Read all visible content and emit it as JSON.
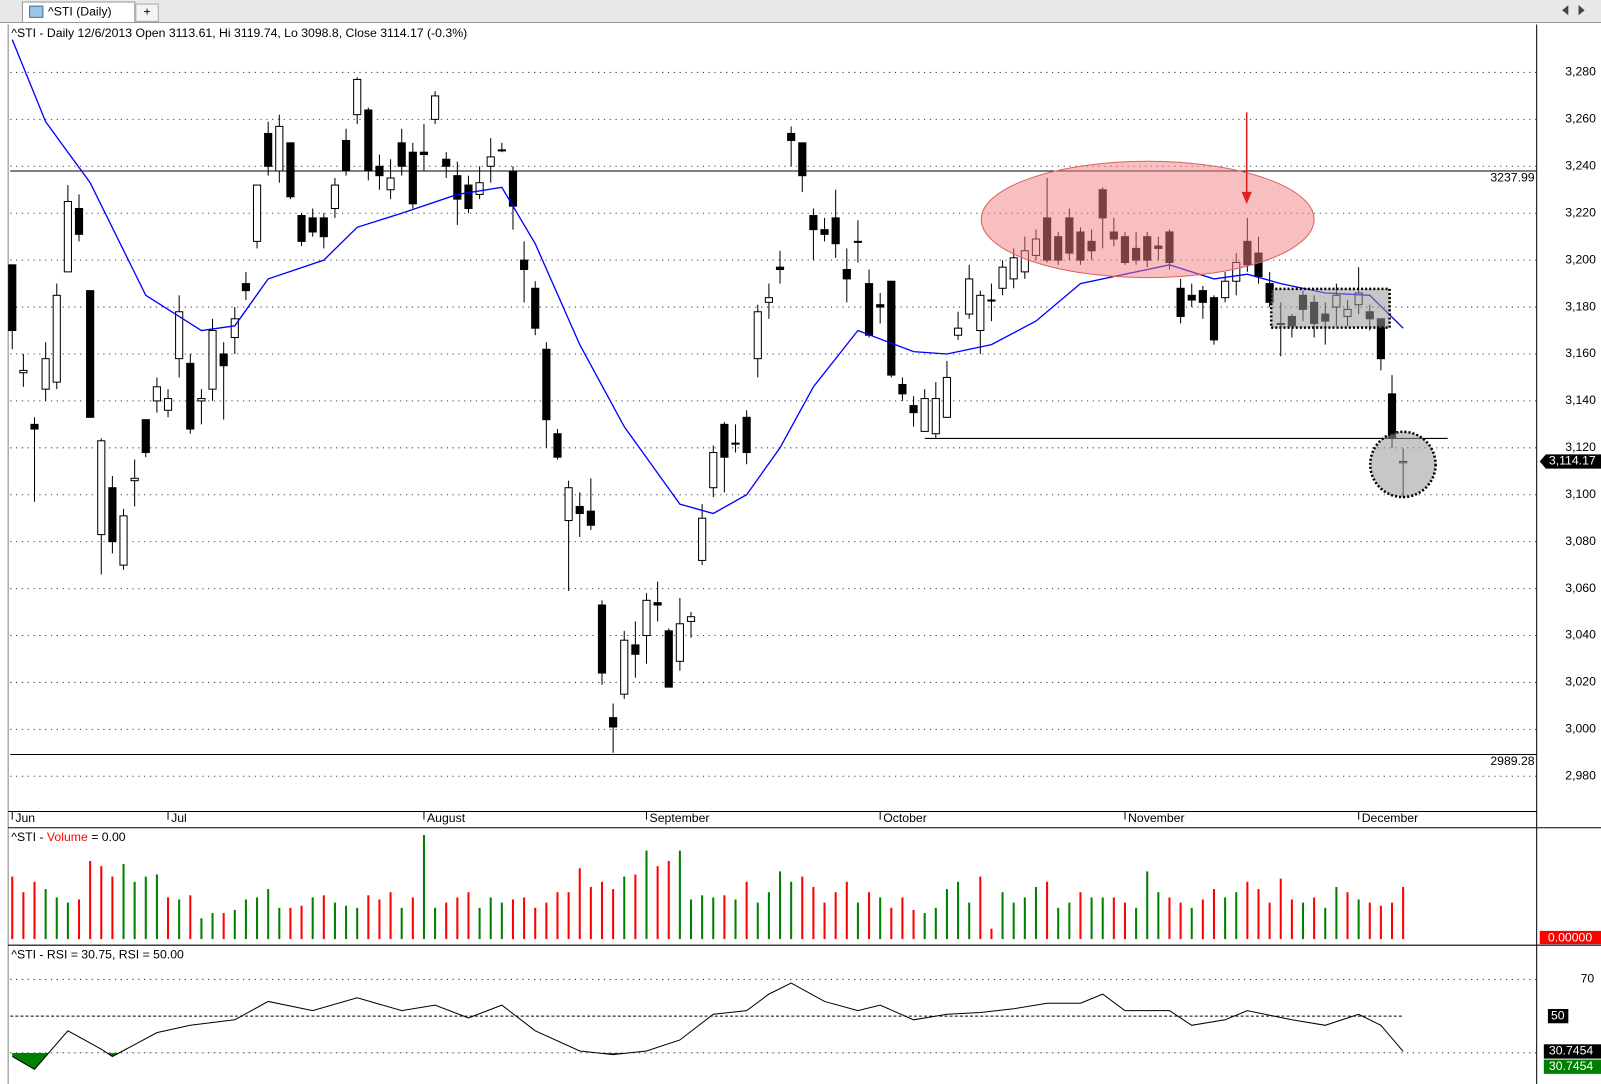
{
  "window": {
    "tab": "^STI (Daily)"
  },
  "chart_data": [
    {
      "type": "candlestick",
      "title": "^STI - Daily 12/6/2013 Open 3113.61, Hi 3119.74, Lo 3098.8, Close 3114.17 (-0.3%)",
      "open": [
        3198,
        3152,
        3130,
        3145,
        3148,
        3195,
        3222,
        3187,
        3083,
        3103,
        3070,
        3106,
        3132,
        3140,
        3136,
        3158,
        3156,
        3140,
        3145,
        3160,
        3167,
        3190,
        3208,
        3254,
        3238,
        3250,
        3219,
        3218,
        3218,
        3222,
        3251,
        3262,
        3264,
        3240,
        3230,
        3250,
        3246,
        3246,
        3260,
        3243,
        3236,
        3232,
        3228,
        3240,
        3247,
        3238,
        3200,
        3188,
        3162,
        3126,
        3089,
        3095,
        3093,
        3053,
        3005,
        3015,
        3036,
        3040,
        3054,
        3042,
        3029,
        3046,
        3072,
        3103,
        3130,
        3122,
        3133,
        3158,
        3182,
        3197,
        3254,
        3250,
        3219,
        3213,
        3218,
        3196,
        3208,
        3190,
        3181,
        3191,
        3147,
        3138,
        3127,
        3126,
        3133,
        3168,
        3177,
        3170,
        3183,
        3188,
        3192,
        3195,
        3202,
        3218,
        3210,
        3218,
        3212,
        3208,
        3230,
        3212,
        3210,
        3205,
        3210,
        3206,
        3212,
        3188,
        3185,
        3187,
        3184,
        3184,
        3191,
        3208,
        3203,
        3190,
        3173,
        3176,
        3185,
        3182,
        3177,
        3180,
        3176,
        3181,
        3178,
        3175,
        3143,
        3113.61
      ],
      "high": [
        3198,
        3160,
        3133,
        3165,
        3190,
        3232,
        3228,
        3187,
        3124,
        3108,
        3094,
        3115,
        3132,
        3150,
        3145,
        3185,
        3160,
        3145,
        3175,
        3165,
        3180,
        3195,
        3232,
        3259,
        3262,
        3250,
        3220,
        3222,
        3220,
        3235,
        3256,
        3278,
        3265,
        3245,
        3243,
        3256,
        3250,
        3258,
        3272,
        3246,
        3242,
        3236,
        3240,
        3252,
        3250,
        3240,
        3208,
        3191,
        3165,
        3128,
        3106,
        3101,
        3107,
        3055,
        3011,
        3042,
        3046,
        3058,
        3063,
        3043,
        3056,
        3050,
        3096,
        3121,
        3131,
        3130,
        3136,
        3181,
        3190,
        3204,
        3257,
        3250,
        3222,
        3218,
        3230,
        3205,
        3217,
        3196,
        3186,
        3191,
        3150,
        3142,
        3145,
        3148,
        3157,
        3178,
        3198,
        3187,
        3190,
        3200,
        3205,
        3210,
        3213,
        3235,
        3212,
        3222,
        3214,
        3213,
        3231,
        3218,
        3212,
        3212,
        3212,
        3210,
        3213,
        3192,
        3190,
        3189,
        3185,
        3195,
        3203,
        3218,
        3210,
        3195,
        3182,
        3177,
        3187,
        3185,
        3182,
        3190,
        3183,
        3197,
        3181,
        3175,
        3151,
        3119.74
      ],
      "low": [
        3162,
        3146,
        3097,
        3140,
        3145,
        3195,
        3208,
        3133,
        3066,
        3075,
        3068,
        3095,
        3116,
        3135,
        3133,
        3150,
        3126,
        3130,
        3140,
        3132,
        3160,
        3183,
        3205,
        3236,
        3233,
        3226,
        3206,
        3210,
        3205,
        3218,
        3236,
        3258,
        3234,
        3230,
        3226,
        3236,
        3222,
        3238,
        3258,
        3235,
        3215,
        3220,
        3226,
        3233,
        3246,
        3213,
        3182,
        3168,
        3120,
        3115,
        3059,
        3082,
        3085,
        3019,
        2990,
        3013,
        3022,
        3028,
        3046,
        3018,
        3025,
        3039,
        3070,
        3099,
        3101,
        3118,
        3113,
        3150,
        3175,
        3190,
        3240,
        3229,
        3200,
        3208,
        3201,
        3182,
        3199,
        3167,
        3173,
        3150,
        3140,
        3129,
        3127,
        3124,
        3134,
        3166,
        3175,
        3160,
        3174,
        3185,
        3188,
        3192,
        3200,
        3199,
        3198,
        3200,
        3198,
        3200,
        3205,
        3206,
        3198,
        3198,
        3197,
        3200,
        3196,
        3173,
        3180,
        3175,
        3164,
        3182,
        3185,
        3195,
        3190,
        3180,
        3159,
        3167,
        3174,
        3167,
        3164,
        3172,
        3172,
        3177,
        3170,
        3153,
        3120,
        3098.8
      ],
      "close": [
        3170,
        3153,
        3128,
        3158,
        3185,
        3225,
        3211,
        3133,
        3123,
        3080,
        3091,
        3107,
        3118,
        3146,
        3141,
        3178,
        3128,
        3141,
        3170,
        3155,
        3175,
        3187,
        3232,
        3240,
        3257,
        3227,
        3208,
        3212,
        3210,
        3232,
        3238,
        3277,
        3238,
        3236,
        3235,
        3240,
        3224,
        3245,
        3270,
        3240,
        3226,
        3222,
        3233,
        3244,
        3247,
        3223,
        3196,
        3171,
        3132,
        3116,
        3103,
        3092,
        3087,
        3024,
        3001,
        3038,
        3032,
        3055,
        3053,
        3018,
        3045,
        3048,
        3090,
        3118,
        3116,
        3122,
        3118,
        3178,
        3184,
        3196,
        3251,
        3236,
        3213,
        3211,
        3207,
        3192,
        3208,
        3168,
        3180,
        3151,
        3143,
        3135,
        3141,
        3141,
        3150,
        3171,
        3192,
        3185,
        3183,
        3197,
        3201,
        3204,
        3209,
        3200,
        3200,
        3203,
        3200,
        3204,
        3218,
        3209,
        3199,
        3200,
        3200,
        3205,
        3199,
        3176,
        3183,
        3182,
        3166,
        3191,
        3199,
        3198,
        3193,
        3182,
        3173,
        3172,
        3179,
        3173,
        3174,
        3185,
        3179,
        3186,
        3175,
        3158,
        3124,
        3114.17
      ],
      "up_color": "#ffffff",
      "down_color": "#000000",
      "ma": {
        "color": "#0000ff",
        "x": [
          0,
          3,
          7,
          12,
          17,
          20,
          23,
          28,
          31,
          35,
          40,
          44,
          47,
          51,
          55,
          60,
          63,
          66,
          69,
          72,
          76,
          81,
          84,
          88,
          92,
          96,
          100,
          104,
          108,
          111,
          114,
          118,
          122,
          125
        ],
        "values": [
          3294,
          3259,
          3233,
          3185,
          3170,
          3172,
          3192,
          3200,
          3214,
          3220,
          3228,
          3231,
          3207,
          3164,
          3129,
          3096,
          3092,
          3100,
          3120,
          3146,
          3170,
          3161,
          3160,
          3164,
          3174,
          3190,
          3194,
          3198,
          3192,
          3194,
          3190,
          3186,
          3185,
          3171
        ]
      },
      "hlines": [
        3237.99,
        2989.28
      ],
      "support": {
        "value": 3124,
        "x": [
          82,
          129
        ]
      },
      "last_price": {
        "value": 3114.17,
        "label": "3,114.17"
      },
      "xlim": [
        0,
        137
      ],
      "xticks": [
        {
          "value": 0,
          "label": "Jun"
        },
        {
          "value": 14,
          "label": "Jul"
        },
        {
          "value": 37,
          "label": "August"
        },
        {
          "value": 57,
          "label": "September"
        },
        {
          "value": 78,
          "label": "October"
        },
        {
          "value": 100,
          "label": "November"
        },
        {
          "value": 121,
          "label": "December"
        }
      ],
      "ylim": [
        2965,
        3300
      ],
      "yticks": [
        {
          "value": 2980,
          "label": "2,980"
        },
        {
          "value": 3000,
          "label": "3,000"
        },
        {
          "value": 3020,
          "label": "3,020"
        },
        {
          "value": 3040,
          "label": "3,040"
        },
        {
          "value": 3060,
          "label": "3,060"
        },
        {
          "value": 3080,
          "label": "3,080"
        },
        {
          "value": 3100,
          "label": "3,100"
        },
        {
          "value": 3120,
          "label": "3,120"
        },
        {
          "value": 3140,
          "label": "3,140"
        },
        {
          "value": 3160,
          "label": "3,160"
        },
        {
          "value": 3180,
          "label": "3,180"
        },
        {
          "value": 3200,
          "label": "3,200"
        },
        {
          "value": 3220,
          "label": "3,220"
        },
        {
          "value": 3240,
          "label": "3,240"
        },
        {
          "value": 3260,
          "label": "3,260"
        },
        {
          "value": 3280,
          "label": "3,280"
        }
      ]
    },
    {
      "type": "bar",
      "title": [
        "^STI - ",
        "Volume",
        " = 0.00"
      ],
      "values": [
        60,
        45,
        55,
        48,
        40,
        35,
        38,
        75,
        70,
        60,
        72,
        55,
        60,
        62,
        40,
        38,
        42,
        20,
        25,
        25,
        28,
        38,
        40,
        48,
        30,
        30,
        32,
        40,
        42,
        35,
        32,
        30,
        42,
        38,
        45,
        30,
        40,
        100,
        30,
        35,
        40,
        45,
        30,
        40,
        35,
        38,
        40,
        30,
        35,
        45,
        45,
        68,
        50,
        55,
        48,
        60,
        62,
        85,
        70,
        75,
        85,
        38,
        42,
        40,
        42,
        38,
        55,
        35,
        45,
        65,
        55,
        60,
        50,
        35,
        45,
        55,
        35,
        45,
        40,
        30,
        40,
        28,
        25,
        30,
        48,
        55,
        35,
        60,
        10,
        45,
        35,
        40,
        50,
        55,
        30,
        35,
        45,
        40,
        40,
        40,
        35,
        30,
        65,
        45,
        40,
        35,
        30,
        38,
        48,
        40,
        45,
        55,
        48,
        35,
        58,
        38,
        35,
        40,
        30,
        50,
        45,
        38,
        35,
        32,
        35,
        50
      ],
      "ylim": [
        0,
        100
      ],
      "up_color": "#008000",
      "down_color": "#ff0000",
      "last_label": {
        "value": 0,
        "label": "0.00000"
      }
    },
    {
      "type": "line",
      "title": "^STI - RSI = 30.75, RSI = 50.00",
      "x": [
        0,
        2,
        5,
        8,
        9,
        13,
        16,
        20,
        23,
        27,
        31,
        35,
        38,
        41,
        44,
        47,
        51,
        54,
        57,
        60,
        63,
        66,
        68,
        70,
        73,
        76,
        78,
        81,
        84,
        87,
        90,
        93,
        96,
        98,
        100,
        104,
        106,
        109,
        111,
        115,
        118,
        121,
        123,
        125
      ],
      "values": [
        28,
        21,
        42,
        32,
        28,
        41,
        45,
        48,
        58,
        53,
        60,
        53,
        56,
        49,
        56,
        42,
        31,
        29,
        31,
        37,
        51,
        53,
        62,
        68,
        58,
        53,
        56,
        48,
        51,
        52,
        54,
        57,
        57,
        62,
        53,
        53,
        45,
        48,
        53,
        48,
        45,
        51,
        45,
        30.75
      ],
      "color": "#000000",
      "fill_color": "#008000",
      "ylim": [
        13,
        87
      ],
      "yticks": [
        70
      ],
      "reference": 50,
      "lower_level": 30,
      "last_values": [
        30.7454,
        30.7454
      ],
      "last_colors": [
        "#000000",
        "#008000"
      ]
    }
  ]
}
